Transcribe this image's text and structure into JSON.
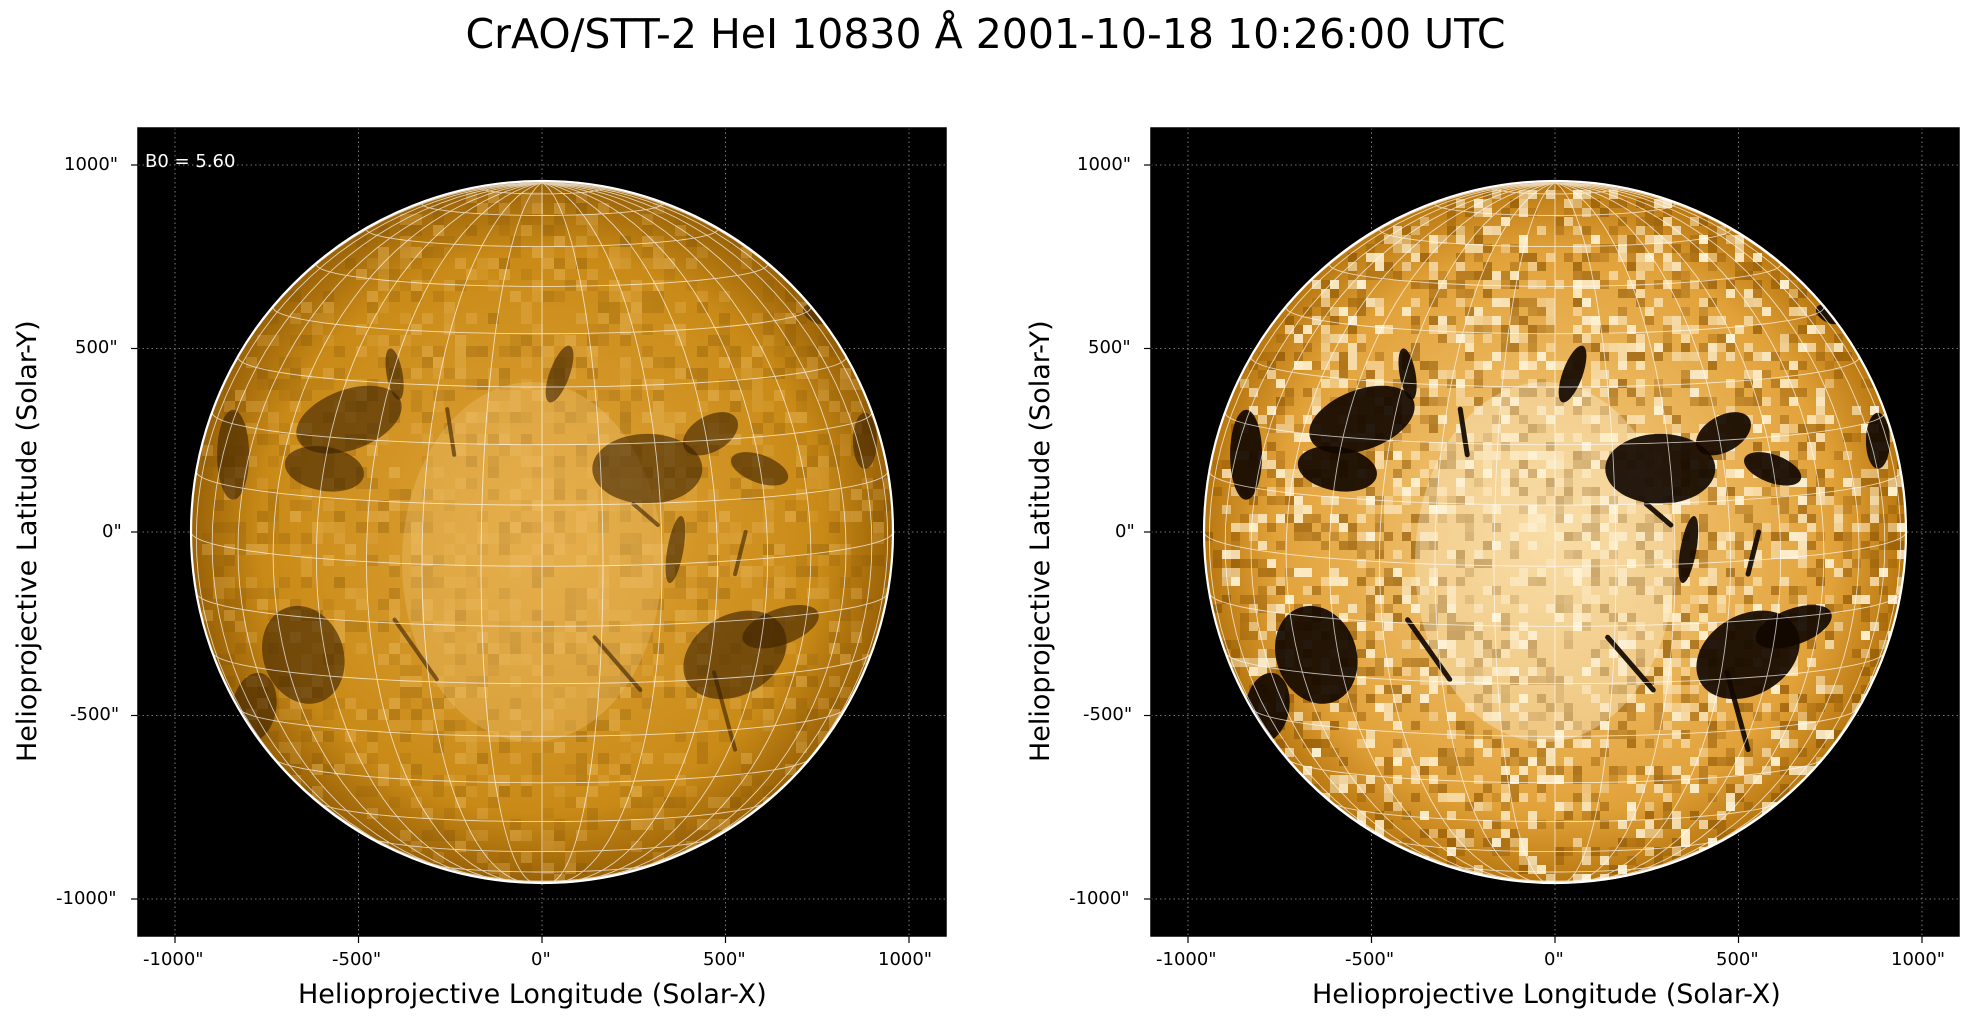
{
  "figure": {
    "title": "CrAO/STT-2 HeI 10830 Å 2001-10-18 10:26:00 UTC",
    "colors": {
      "frame_bg": "#000000",
      "disk_base": "#c9820e",
      "grid": "#ffffff"
    }
  },
  "panels": [
    {
      "id": "left",
      "annotation": "B0 = 5.60",
      "xlabel": "Helioprojective Longitude (Solar-X)",
      "ylabel": "Helioprojective Latitude (Solar-Y)",
      "xticks": [
        "-1000\"",
        "-500\"",
        "0\"",
        "500\"",
        "1000\""
      ],
      "yticks": [
        "1000\"",
        "500\"",
        "0\"",
        "-500\"",
        "-1000\""
      ],
      "contrast": "normal"
    },
    {
      "id": "right",
      "annotation": "",
      "xlabel": "Helioprojective Longitude (Solar-X)",
      "ylabel": "Helioprojective Latitude (Solar-Y)",
      "xticks": [
        "-1000\"",
        "-500\"",
        "0\"",
        "500\"",
        "1000\""
      ],
      "yticks": [
        "1000\"",
        "500\"",
        "0\"",
        "-500\"",
        "-1000\""
      ],
      "contrast": "enhanced"
    }
  ]
}
